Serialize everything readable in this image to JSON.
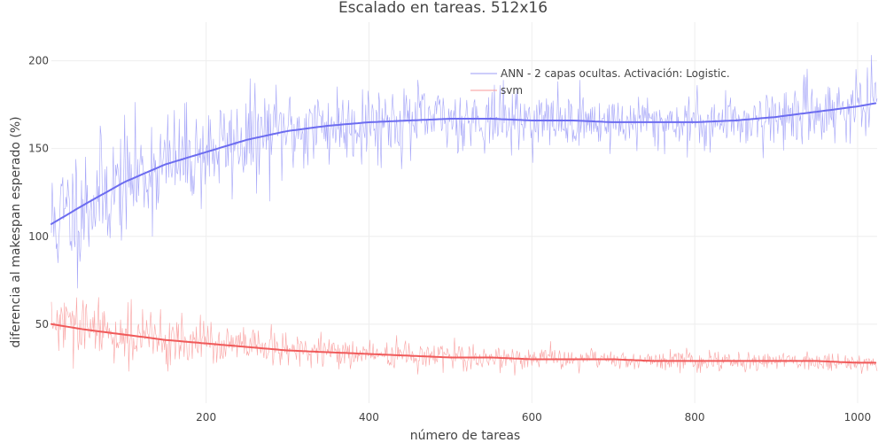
{
  "chart_data": {
    "type": "line",
    "title": "Escalado en tareas. 512x16",
    "xlabel": "número de tareas",
    "ylabel": "diferencia al makespan esperado (%)",
    "xlim": [
      10,
      1024
    ],
    "ylim": [
      5,
      222
    ],
    "x_ticks": [
      200,
      400,
      600,
      800,
      1000
    ],
    "x_tick_labels": [
      "200",
      "400",
      "600",
      "800",
      "1000"
    ],
    "y_ticks": [
      50,
      100,
      150,
      200
    ],
    "y_tick_labels": [
      "50",
      "100",
      "150",
      "200"
    ],
    "grid": true,
    "legend_position": "top-right",
    "legend": [
      "ANN - 2 capas ocultas. Activación: Logistic.",
      "svm"
    ],
    "colors": {
      "ann": "#6c6cf0",
      "ann_raw": "#9b9bf7",
      "svm": "#f05a5a",
      "svm_raw": "#f89a9a",
      "grid": "#eeeeee",
      "text": "#444444"
    },
    "raw_sample_step": 1,
    "series": [
      {
        "key": "ann_raw",
        "legend": 0,
        "style": "raw",
        "x": [
          10,
          50,
          100,
          150,
          200,
          250,
          300,
          350,
          400,
          450,
          500,
          550,
          600,
          650,
          700,
          750,
          800,
          850,
          900,
          950,
          1000,
          1024
        ],
        "y": [
          107,
          118,
          131,
          141,
          148,
          155,
          160,
          163,
          165,
          166,
          167,
          167,
          166,
          166,
          165,
          165,
          165,
          166,
          168,
          171,
          174,
          176
        ],
        "noise_sd": [
          18,
          18,
          16,
          15,
          14,
          14,
          13,
          12,
          11,
          10,
          9,
          9,
          8,
          8,
          8,
          8,
          8,
          8,
          9,
          9,
          9,
          9
        ],
        "seed": 11
      },
      {
        "key": "svm_raw",
        "legend": 1,
        "style": "raw",
        "x": [
          10,
          50,
          100,
          150,
          200,
          250,
          300,
          350,
          400,
          450,
          500,
          550,
          600,
          650,
          700,
          750,
          800,
          850,
          900,
          950,
          1000,
          1024
        ],
        "y": [
          50,
          47,
          44,
          41,
          39,
          37,
          35,
          34,
          33,
          32,
          31,
          31,
          30,
          30,
          30,
          29,
          29,
          29,
          29,
          29,
          28,
          28
        ],
        "noise_sd": [
          9,
          9,
          8,
          7,
          6,
          6,
          5,
          4.5,
          4,
          4,
          3.5,
          3.5,
          3,
          3,
          3,
          3,
          3,
          3,
          3,
          3,
          3,
          3
        ],
        "seed": 29
      },
      {
        "key": "ann",
        "legend": 0,
        "style": "smooth",
        "x": [
          10,
          50,
          100,
          150,
          200,
          250,
          300,
          350,
          400,
          450,
          500,
          550,
          600,
          650,
          700,
          750,
          800,
          850,
          900,
          950,
          1000,
          1024
        ],
        "y": [
          107,
          118,
          131,
          141,
          148,
          155,
          160,
          163,
          165,
          166,
          167,
          167,
          166,
          166,
          165,
          165,
          165,
          166,
          168,
          171,
          174,
          176
        ]
      },
      {
        "key": "svm",
        "legend": 1,
        "style": "smooth",
        "x": [
          10,
          50,
          100,
          150,
          200,
          250,
          300,
          350,
          400,
          450,
          500,
          550,
          600,
          650,
          700,
          750,
          800,
          850,
          900,
          950,
          1000,
          1024
        ],
        "y": [
          50,
          47,
          44,
          41,
          39,
          37,
          35,
          34,
          33,
          32,
          31,
          31,
          30,
          30,
          30,
          29,
          29,
          29,
          29,
          29,
          28,
          28
        ]
      }
    ]
  }
}
